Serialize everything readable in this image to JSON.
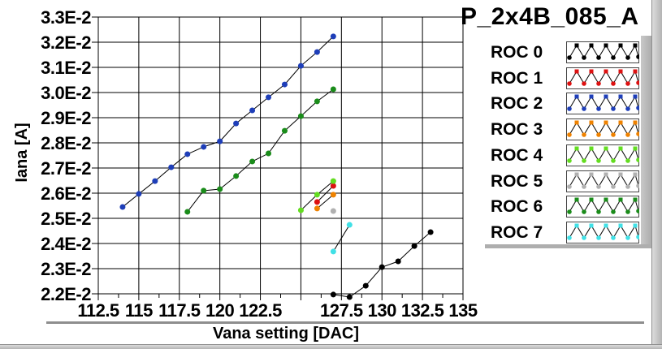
{
  "title": "P_2x4B_085_A",
  "legend": {
    "entries": [
      {
        "label": "ROC 0",
        "color": "#000000",
        "icon": "zigzag-waveform-icon"
      },
      {
        "label": "ROC 1",
        "color": "#dd1111",
        "icon": "zigzag-waveform-icon"
      },
      {
        "label": "ROC 2",
        "color": "#1e3eb8",
        "icon": "zigzag-waveform-icon"
      },
      {
        "label": "ROC 3",
        "color": "#ef8200",
        "icon": "zigzag-waveform-icon"
      },
      {
        "label": "ROC 4",
        "color": "#63dc20",
        "icon": "zigzag-waveform-icon"
      },
      {
        "label": "ROC 5",
        "color": "#b0b0b0",
        "icon": "zigzag-waveform-icon"
      },
      {
        "label": "ROC 6",
        "color": "#1a8c1a",
        "icon": "zigzag-waveform-icon"
      },
      {
        "label": "ROC 7",
        "color": "#40e0e6",
        "icon": "zigzag-waveform-icon"
      }
    ]
  },
  "chart_data": {
    "type": "line",
    "title": "P_2x4B_085_A",
    "xlabel": "Vana setting [DAC]",
    "ylabel": "Iana [A]",
    "xlim": [
      112.5,
      135
    ],
    "ylim": [
      0.022,
      0.033
    ],
    "x_ticks": [
      112.5,
      115,
      117.5,
      120,
      122.5,
      125,
      127.5,
      130,
      132.5,
      135
    ],
    "x_tick_labels": [
      "112.5",
      "115",
      "117.5",
      "120",
      "122.5",
      "",
      "127.5",
      "130",
      "132.5",
      "135"
    ],
    "x_minor_tick_step": 1.25,
    "y_ticks": [
      0.022,
      0.023,
      0.024,
      0.025,
      0.026,
      0.027,
      0.028,
      0.029,
      0.03,
      0.031,
      0.032,
      0.033
    ],
    "y_tick_labels": [
      "2.2E-2",
      "2.3E-2",
      "2.4E-2",
      "2.5E-2",
      "2.6E-2",
      "2.7E-2",
      "2.8E-2",
      "2.9E-2",
      "3.0E-2",
      "3.1E-2",
      "3.2E-2",
      "3.3E-2"
    ],
    "grid": true,
    "legend_position": "right",
    "line_color": "#000000",
    "series": [
      {
        "name": "ROC 0",
        "marker_color": "#000000",
        "x": [
          127,
          128,
          129,
          130,
          131,
          132,
          133
        ],
        "y": [
          0.02197,
          0.02187,
          0.02232,
          0.02306,
          0.02329,
          0.0239,
          0.02445
        ]
      },
      {
        "name": "ROC 1",
        "marker_color": "#dd1111",
        "x": [
          126,
          127
        ],
        "y": [
          0.02565,
          0.02629
        ]
      },
      {
        "name": "ROC 2",
        "marker_color": "#1e3eb8",
        "x": [
          114,
          115,
          116,
          117,
          118,
          119,
          120,
          121,
          122,
          123,
          124,
          125,
          126,
          127
        ],
        "y": [
          0.02545,
          0.02597,
          0.02648,
          0.02703,
          0.02755,
          0.02784,
          0.02806,
          0.02877,
          0.02929,
          0.02981,
          0.03032,
          0.03106,
          0.03161,
          0.03223
        ]
      },
      {
        "name": "ROC 3",
        "marker_color": "#ef8200",
        "x": [
          126,
          127
        ],
        "y": [
          0.02539,
          0.02594
        ]
      },
      {
        "name": "ROC 4",
        "marker_color": "#63dc20",
        "x": [
          125,
          126,
          127
        ],
        "y": [
          0.02532,
          0.02594,
          0.02648
        ]
      },
      {
        "name": "ROC 5",
        "marker_color": "#b0b0b0",
        "x": [
          127
        ],
        "y": [
          0.02529
        ]
      },
      {
        "name": "ROC 6",
        "marker_color": "#1a8c1a",
        "x": [
          118,
          119,
          120,
          121,
          122,
          123,
          124,
          125,
          126,
          127
        ],
        "y": [
          0.02526,
          0.0261,
          0.02616,
          0.02668,
          0.02726,
          0.02758,
          0.02848,
          0.02906,
          0.02965,
          0.03013
        ]
      },
      {
        "name": "ROC 7",
        "marker_color": "#40e0e6",
        "x": [
          127,
          128
        ],
        "y": [
          0.02368,
          0.02474
        ]
      }
    ]
  },
  "colors": {
    "plot_frame": "#000000",
    "grid": "#000000",
    "window_frame": "#b4b4b4",
    "panel_shadow": "#aeaeae"
  }
}
